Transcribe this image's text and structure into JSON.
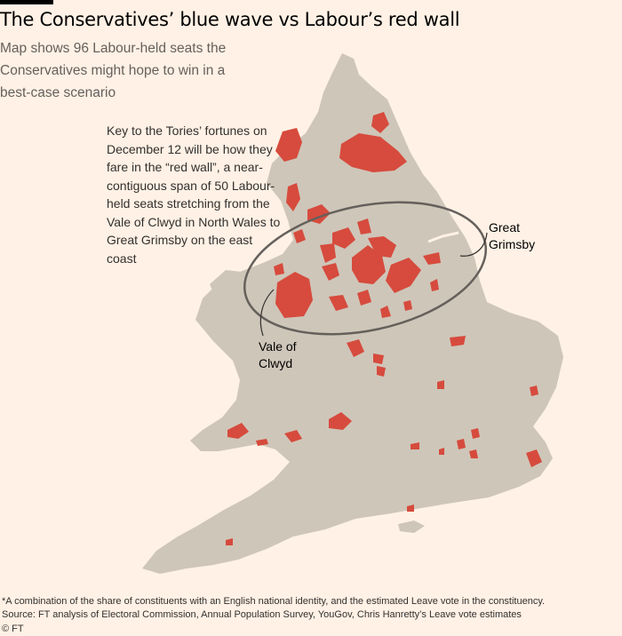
{
  "header": {
    "title": "The Conservatives’ blue wave vs Labour’s red wall",
    "subtitle": "Map shows 96 Labour-held seats the Conservatives might hope to win in a best-case scenario"
  },
  "annotation": {
    "text": "Key to the Tories’ fortunes on December 12 will be how they fare in the “red wall”, a near-contiguous span of 50 Labour-held seats stretching from the Vale of Clwyd in North Wales to Great Grimsby on the east coast"
  },
  "labels": {
    "grimsby_line1": "Great",
    "grimsby_line2": "Grimsby",
    "vale_line1": "Vale of",
    "vale_line2": "Clwyd"
  },
  "footer": {
    "footnote": "*A combination of the share of constituents with an English national identity, and the estimated Leave vote in the constituency.",
    "source": "Source: FT analysis of Electoral Commission, Annual Population Survey, YouGov, Chris Hanretty’s Leave vote estimates",
    "credit": "© FT"
  },
  "colors": {
    "background": "#fff1e5",
    "land": "#cec6b9",
    "seat": "#d64b3d",
    "ellipse": "#66605c"
  }
}
